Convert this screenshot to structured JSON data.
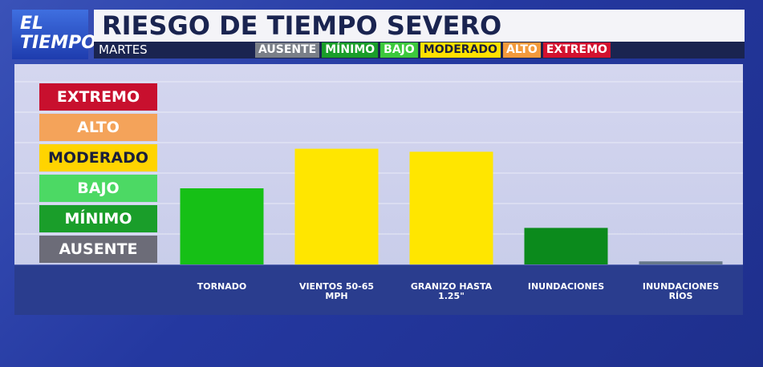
{
  "chart_data": {
    "type": "bar",
    "logo": [
      "EL",
      "TIEMPO"
    ],
    "title": "RIESGO DE TIEMPO SEVERO",
    "subtitle": "MARTES",
    "legend": [
      {
        "label": "AUSENTE",
        "color": "#7a7f88",
        "text_color": "#ffffff"
      },
      {
        "label": "MÍNIMO",
        "color": "#1a9e2a",
        "text_color": "#ffffff"
      },
      {
        "label": "BAJO",
        "color": "#3cc93c",
        "text_color": "#ffffff"
      },
      {
        "label": "MODERADO",
        "color": "#ffe100",
        "text_color": "#1a1f3a"
      },
      {
        "label": "ALTO",
        "color": "#f39a3c",
        "text_color": "#ffffff"
      },
      {
        "label": "EXTREMO",
        "color": "#d3122f",
        "text_color": "#ffffff"
      }
    ],
    "categories": [
      "TORNADO",
      "VIENTOS 50-65 MPH",
      "GRANIZO HASTA 1.25\"",
      "INUNDACIONES",
      "INUNDACIONES RÍOS"
    ],
    "values": [
      2.5,
      3.8,
      3.7,
      1.2,
      0.1
    ],
    "colors": [
      "#16c016",
      "#ffe600",
      "#ffe600",
      "#0b8a1c",
      "#66788a"
    ],
    "ylim": [
      0,
      6
    ],
    "yticks": [
      {
        "value": 0.5,
        "label": "AUSENTE"
      },
      {
        "value": 1.5,
        "label": "MÍNIMO"
      },
      {
        "value": 2.5,
        "label": "BAJO"
      },
      {
        "value": 3.5,
        "label": "MODERADO"
      },
      {
        "value": 4.5,
        "label": "ALTO"
      },
      {
        "value": 5.5,
        "label": "EXTREMO"
      }
    ],
    "ytick_colors": [
      "#6c6c78",
      "#1a9e2a",
      "#4cd964",
      "#ffd400",
      "#f4a35a",
      "#c8102e"
    ],
    "ytick_text_colors": [
      "#ffffff",
      "#ffffff",
      "#ffffff",
      "#1a1f3a",
      "#ffffff",
      "#ffffff"
    ],
    "grid": true
  }
}
